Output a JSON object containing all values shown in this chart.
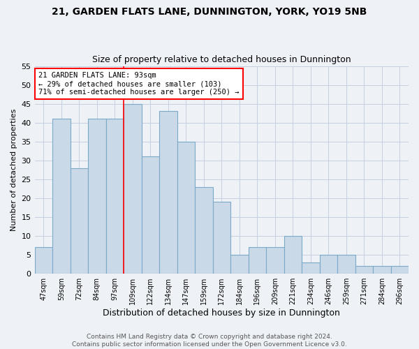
{
  "title1": "21, GARDEN FLATS LANE, DUNNINGTON, YORK, YO19 5NB",
  "title2": "Size of property relative to detached houses in Dunnington",
  "xlabel": "Distribution of detached houses by size in Dunnington",
  "ylabel": "Number of detached properties",
  "categories": [
    "47sqm",
    "59sqm",
    "72sqm",
    "84sqm",
    "97sqm",
    "109sqm",
    "122sqm",
    "134sqm",
    "147sqm",
    "159sqm",
    "172sqm",
    "184sqm",
    "196sqm",
    "209sqm",
    "221sqm",
    "234sqm",
    "246sqm",
    "259sqm",
    "271sqm",
    "284sqm",
    "296sqm"
  ],
  "values": [
    7,
    41,
    28,
    41,
    41,
    45,
    31,
    43,
    35,
    23,
    19,
    5,
    7,
    7,
    10,
    3,
    5,
    5,
    2,
    2,
    2
  ],
  "bar_color": "#c9d9e8",
  "bar_edge_color": "#7aaac8",
  "bar_edge_width": 0.8,
  "ylim": [
    0,
    55
  ],
  "yticks": [
    0,
    5,
    10,
    15,
    20,
    25,
    30,
    35,
    40,
    45,
    50,
    55
  ],
  "red_line_index": 4.5,
  "annotation_text": "21 GARDEN FLATS LANE: 93sqm\n← 29% of detached houses are smaller (103)\n71% of semi-detached houses are larger (250) →",
  "annotation_box_color": "white",
  "annotation_box_edge_color": "red",
  "footer1": "Contains HM Land Registry data © Crown copyright and database right 2024.",
  "footer2": "Contains public sector information licensed under the Open Government Licence v3.0.",
  "bg_color": "#eef2f7",
  "grid_color": "#c5cfe0",
  "title_fontsize": 10,
  "subtitle_fontsize": 9
}
